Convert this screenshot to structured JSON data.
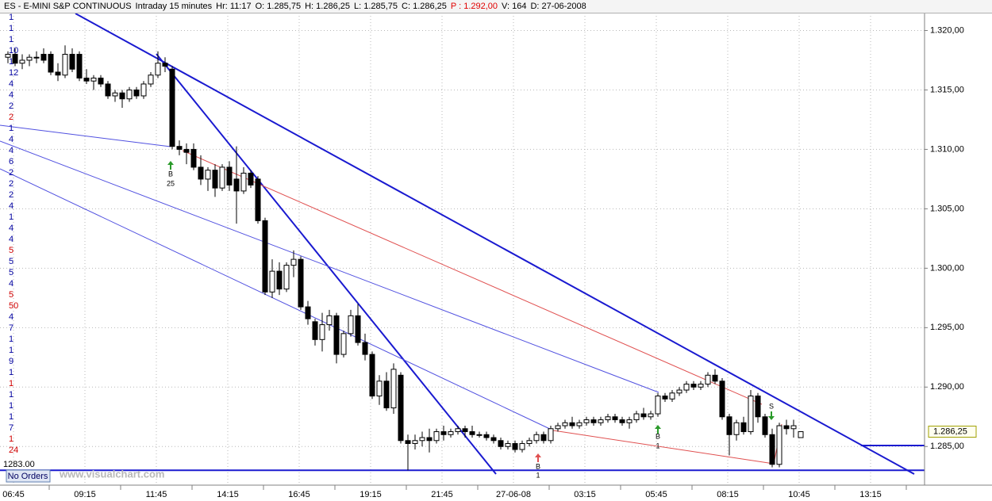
{
  "header": {
    "items": [
      {
        "text": "ES - E-MINI S&P CONTINUOUS",
        "color": "#000000"
      },
      {
        "text": "Intraday 15 minutes",
        "color": "#000000"
      },
      {
        "text": "Hr: 11:17",
        "color": "#000000"
      },
      {
        "text": "O: 1.285,75",
        "color": "#000000"
      },
      {
        "text": "H: 1.286,25",
        "color": "#000000"
      },
      {
        "text": "L: 1.285,75",
        "color": "#000000"
      },
      {
        "text": "C: 1.286,25",
        "color": "#000000"
      },
      {
        "text": "P : 1.292,00",
        "color": "#e00000"
      },
      {
        "text": "V: 164",
        "color": "#000000"
      },
      {
        "text": "D: 27-06-2008",
        "color": "#000000"
      }
    ]
  },
  "chart_data": {
    "type": "candlestick",
    "up_color": "#ffffff",
    "down_color": "#000000",
    "grid": true,
    "ylim": [
      1281.75,
      1321.5
    ],
    "yticks": [
      {
        "value": 1320,
        "label": "1.320,00"
      },
      {
        "value": 1315,
        "label": "1.315,00"
      },
      {
        "value": 1310,
        "label": "1.310,00"
      },
      {
        "value": 1305,
        "label": "1.305,00"
      },
      {
        "value": 1300,
        "label": "1.300,00"
      },
      {
        "value": 1295,
        "label": "1.295,00"
      },
      {
        "value": 1290,
        "label": "1.290,00"
      },
      {
        "value": 1285,
        "label": "1.285,00"
      }
    ],
    "categories": [
      "06:45",
      "09:15",
      "11:45",
      "14:15",
      "16:45",
      "19:15",
      "21:45",
      "27-06-08",
      "03:15",
      "05:45",
      "08:15",
      "10:45",
      "13:15"
    ],
    "last_price": {
      "value": 1286.25,
      "label": "1.286,25"
    },
    "level": {
      "value": 1283,
      "label": "1283.00"
    },
    "left_labels": [
      {
        "text": "1",
        "color": "#0000a0"
      },
      {
        "text": "1",
        "color": "#0000a0"
      },
      {
        "text": "1",
        "color": "#0000a0"
      },
      {
        "text": "10",
        "color": "#0000a0"
      },
      {
        "text": "1",
        "color": "#0000a0"
      },
      {
        "text": "12",
        "color": "#0000a0"
      },
      {
        "text": "4",
        "color": "#0000a0"
      },
      {
        "text": "4",
        "color": "#0000a0"
      },
      {
        "text": "2",
        "color": "#0000a0"
      },
      {
        "text": "2",
        "color": "#d00000"
      },
      {
        "text": "1",
        "color": "#0000a0"
      },
      {
        "text": "4",
        "color": "#0000a0"
      },
      {
        "text": "4",
        "color": "#0000a0"
      },
      {
        "text": "6",
        "color": "#0000a0"
      },
      {
        "text": "2",
        "color": "#0000a0"
      },
      {
        "text": "2",
        "color": "#0000a0"
      },
      {
        "text": "2",
        "color": "#0000a0"
      },
      {
        "text": "4",
        "color": "#0000a0"
      },
      {
        "text": "1",
        "color": "#0000a0"
      },
      {
        "text": "4",
        "color": "#0000a0"
      },
      {
        "text": "4",
        "color": "#0000a0"
      },
      {
        "text": "5",
        "color": "#d00000"
      },
      {
        "text": "5",
        "color": "#0000a0"
      },
      {
        "text": "5",
        "color": "#0000a0"
      },
      {
        "text": "4",
        "color": "#0000a0"
      },
      {
        "text": "5",
        "color": "#d00000"
      },
      {
        "text": "50",
        "color": "#d00000"
      },
      {
        "text": "4",
        "color": "#0000a0"
      },
      {
        "text": "7",
        "color": "#0000a0"
      },
      {
        "text": "1",
        "color": "#0000a0"
      },
      {
        "text": "1",
        "color": "#0000a0"
      },
      {
        "text": "9",
        "color": "#0000a0"
      },
      {
        "text": "1",
        "color": "#0000a0"
      },
      {
        "text": "1",
        "color": "#d00000"
      },
      {
        "text": "1",
        "color": "#0000a0"
      },
      {
        "text": "1",
        "color": "#0000a0"
      },
      {
        "text": "1",
        "color": "#0000a0"
      },
      {
        "text": "7",
        "color": "#0000a0"
      },
      {
        "text": "1",
        "color": "#d00000"
      },
      {
        "text": "24",
        "color": "#d00000"
      }
    ],
    "signals": [
      {
        "label": "B",
        "qty": "25"
      },
      {
        "label": "B",
        "qty": "1"
      },
      {
        "label": "B",
        "qty": "1"
      },
      {
        "label": "S"
      }
    ],
    "candles": [
      [
        1317.75,
        1318.25,
        1317.25,
        1318
      ],
      [
        1318,
        1318.5,
        1317,
        1317.25
      ],
      [
        1317.25,
        1318,
        1316.75,
        1317.5
      ],
      [
        1317.5,
        1318,
        1317,
        1317.75
      ],
      [
        1317.75,
        1318.25,
        1317.25,
        1317.75
      ],
      [
        1318,
        1318.5,
        1317.25,
        1317.5
      ],
      [
        1318,
        1318.25,
        1316.25,
        1316.5
      ],
      [
        1316.5,
        1317.25,
        1315.75,
        1316.25
      ],
      [
        1316.25,
        1318.75,
        1316,
        1318
      ],
      [
        1318,
        1318.5,
        1316.5,
        1316.75
      ],
      [
        1318,
        1318.25,
        1315.75,
        1316
      ],
      [
        1316,
        1316.75,
        1315.5,
        1315.75
      ],
      [
        1315.75,
        1316.25,
        1315,
        1316
      ],
      [
        1316,
        1316.25,
        1315.25,
        1315.5
      ],
      [
        1315.5,
        1315.75,
        1314.25,
        1314.5
      ],
      [
        1314.5,
        1315,
        1314,
        1314.75
      ],
      [
        1314.75,
        1315,
        1313.5,
        1314.25
      ],
      [
        1314.25,
        1315.25,
        1314,
        1315
      ],
      [
        1315,
        1315.25,
        1314.25,
        1314.5
      ],
      [
        1314.5,
        1315.75,
        1314.25,
        1315.5
      ],
      [
        1315.5,
        1316.5,
        1315.25,
        1316.25
      ],
      [
        1316.25,
        1318.25,
        1316,
        1317.25
      ],
      [
        1317.25,
        1317.75,
        1316.5,
        1317
      ],
      [
        1316.75,
        1317,
        1310,
        1310.25
      ],
      [
        1310.25,
        1310.75,
        1309.5,
        1310
      ],
      [
        1310,
        1310.5,
        1308.75,
        1309.75
      ],
      [
        1310,
        1310.5,
        1308.25,
        1308.5
      ],
      [
        1308.5,
        1309.5,
        1307,
        1307.5
      ],
      [
        1307.5,
        1308.5,
        1306.5,
        1308.25
      ],
      [
        1308.25,
        1308.75,
        1306,
        1306.75
      ],
      [
        1306.75,
        1308.75,
        1306.5,
        1308.5
      ],
      [
        1308.5,
        1309,
        1306.5,
        1307
      ],
      [
        1307.5,
        1310.25,
        1303.75,
        1306.5
      ],
      [
        1306.5,
        1308.5,
        1306.25,
        1308
      ],
      [
        1308,
        1308.25,
        1306.75,
        1307
      ],
      [
        1307.5,
        1307.75,
        1303.75,
        1304
      ],
      [
        1304,
        1304.25,
        1297.75,
        1298
      ],
      [
        1298,
        1300.75,
        1297.5,
        1299.75
      ],
      [
        1299.75,
        1300.5,
        1297.75,
        1298.25
      ],
      [
        1298.25,
        1300.5,
        1298,
        1300.25
      ],
      [
        1300.25,
        1301.5,
        1299.25,
        1300.75
      ],
      [
        1300.75,
        1301,
        1296.5,
        1296.75
      ],
      [
        1296.75,
        1297.25,
        1295.25,
        1295.75
      ],
      [
        1295.5,
        1295.75,
        1293.5,
        1294
      ],
      [
        1294,
        1296.25,
        1293,
        1295.25
      ],
      [
        1295.25,
        1296.5,
        1294.75,
        1296
      ],
      [
        1296,
        1296.25,
        1292,
        1292.75
      ],
      [
        1292.75,
        1294.75,
        1292.5,
        1294.5
      ],
      [
        1294.5,
        1296.5,
        1294.25,
        1296
      ],
      [
        1296,
        1297,
        1293.5,
        1293.75
      ],
      [
        1293.75,
        1294.5,
        1292.25,
        1292.75
      ],
      [
        1292.75,
        1293,
        1289,
        1289.25
      ],
      [
        1289.25,
        1291,
        1288.5,
        1290.5
      ],
      [
        1290.5,
        1291.25,
        1288,
        1288.25
      ],
      [
        1288.25,
        1292,
        1287.75,
        1291.5
      ],
      [
        1291,
        1291.25,
        1285.25,
        1285.5
      ],
      [
        1285.5,
        1286,
        1283,
        1285.25
      ],
      [
        1285.25,
        1286,
        1284.75,
        1285.5
      ],
      [
        1285.5,
        1286.25,
        1285,
        1285.75
      ],
      [
        1285.75,
        1286.5,
        1284.5,
        1285.5
      ],
      [
        1285.5,
        1286.5,
        1285.25,
        1286.25
      ],
      [
        1286.25,
        1286.75,
        1285.5,
        1286
      ],
      [
        1286,
        1286.5,
        1285.75,
        1286.25
      ],
      [
        1286.25,
        1286.75,
        1286,
        1286.5
      ],
      [
        1286.5,
        1286.75,
        1285.75,
        1286.25
      ],
      [
        1286.25,
        1286.75,
        1285.75,
        1286
      ],
      [
        1286,
        1286.25,
        1285.75,
        1286
      ],
      [
        1286,
        1286.25,
        1285.5,
        1285.75
      ],
      [
        1285.75,
        1286,
        1285.25,
        1285.5
      ],
      [
        1285.5,
        1285.75,
        1284.75,
        1285
      ],
      [
        1285,
        1285.5,
        1284.75,
        1285.25
      ],
      [
        1285.25,
        1285.5,
        1284.5,
        1284.75
      ],
      [
        1284.75,
        1285.5,
        1284.5,
        1285.25
      ],
      [
        1285.25,
        1285.75,
        1285,
        1285.5
      ],
      [
        1285.5,
        1286.25,
        1285.25,
        1286
      ],
      [
        1286,
        1286.25,
        1285.25,
        1285.5
      ],
      [
        1285.5,
        1286.75,
        1285.25,
        1286.5
      ],
      [
        1286.5,
        1287,
        1286.25,
        1286.75
      ],
      [
        1286.75,
        1287.25,
        1286.5,
        1287
      ],
      [
        1287,
        1287.5,
        1286.5,
        1286.75
      ],
      [
        1286.75,
        1287.25,
        1286.5,
        1287
      ],
      [
        1287,
        1287.5,
        1286.75,
        1287.25
      ],
      [
        1287.25,
        1287.5,
        1286.75,
        1287
      ],
      [
        1287,
        1287.5,
        1286.75,
        1287.25
      ],
      [
        1287.25,
        1287.75,
        1287,
        1287.5
      ],
      [
        1287.5,
        1287.75,
        1287,
        1287.25
      ],
      [
        1287.25,
        1287.5,
        1286.75,
        1287
      ],
      [
        1287,
        1287.5,
        1286.5,
        1287.25
      ],
      [
        1287.25,
        1288,
        1287,
        1287.75
      ],
      [
        1287.75,
        1288.25,
        1287.25,
        1287.5
      ],
      [
        1287.5,
        1288,
        1287.25,
        1287.75
      ],
      [
        1287.75,
        1289.5,
        1287.5,
        1289.25
      ],
      [
        1289.25,
        1289.5,
        1288.75,
        1289
      ],
      [
        1289,
        1289.75,
        1288.75,
        1289.5
      ],
      [
        1289.5,
        1290,
        1289.25,
        1289.75
      ],
      [
        1289.75,
        1290.5,
        1289.5,
        1290.25
      ],
      [
        1290.25,
        1290.5,
        1289.75,
        1290
      ],
      [
        1290,
        1290.5,
        1289.75,
        1290.25
      ],
      [
        1290.25,
        1291.25,
        1290,
        1291
      ],
      [
        1291,
        1291.5,
        1290.25,
        1290.5
      ],
      [
        1290.5,
        1290.75,
        1287.25,
        1287.5
      ],
      [
        1287.5,
        1287.75,
        1284.25,
        1286
      ],
      [
        1286,
        1287.25,
        1285.5,
        1287
      ],
      [
        1287,
        1287.5,
        1286,
        1286.25
      ],
      [
        1286.25,
        1289.75,
        1286,
        1289.25
      ],
      [
        1289.25,
        1289.5,
        1287,
        1287.5
      ],
      [
        1287.5,
        1287.75,
        1285.75,
        1286
      ],
      [
        1286,
        1286.5,
        1283.25,
        1283.5
      ],
      [
        1283.5,
        1287,
        1283.25,
        1286.75
      ],
      [
        1286.75,
        1287.25,
        1286,
        1286.5
      ],
      [
        1286.5,
        1287.25,
        1285.75,
        1286.75
      ],
      [
        1285.75,
        1286.25,
        1285.75,
        1286.25
      ]
    ]
  },
  "footer": {
    "orders": "No Orders",
    "watermark": "www.visualchart.com"
  }
}
